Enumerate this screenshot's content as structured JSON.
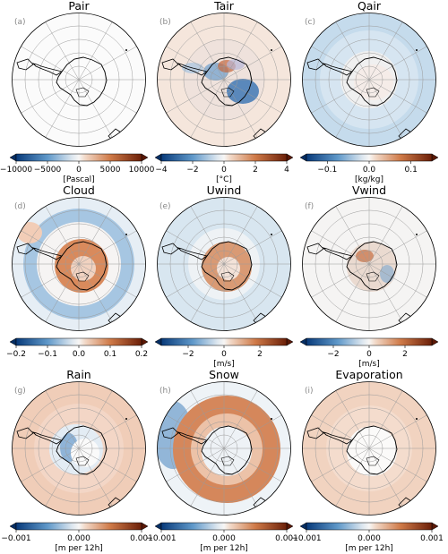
{
  "colors": {
    "neg": "#1f5d9e",
    "neg_light": "#c6dcec",
    "mid": "#f7f6f5",
    "pos_light": "#f3c9b1",
    "pos": "#9b3a12",
    "land_outline": "#000000",
    "grid": "#9a9a9a"
  },
  "chart_data": [
    {
      "type": "heatmap",
      "title": "Pair",
      "panel_letter": "(a)",
      "unit": "[Pascal]",
      "ticks": [
        "−10000",
        "−5000",
        "0",
        "5000",
        "10000"
      ],
      "tick_values": [
        -10000,
        -5000,
        0,
        5000,
        10000
      ],
      "range": [
        -10000,
        10000
      ],
      "pattern": "near_zero"
    },
    {
      "type": "heatmap",
      "title": "Tair",
      "panel_letter": "(b)",
      "unit": "[°C]",
      "ticks": [
        "−4",
        "−2",
        "0",
        "2",
        "4"
      ],
      "tick_values": [
        -4,
        -2,
        0,
        2,
        4
      ],
      "range": [
        -4,
        4
      ],
      "pattern": "tair"
    },
    {
      "type": "heatmap",
      "title": "Qair",
      "panel_letter": "(c)",
      "unit": "[kg/kg]",
      "ticks": [
        "−0.1",
        "0.0",
        "0.1"
      ],
      "tick_values": [
        -0.1,
        0.0,
        0.1
      ],
      "range": [
        -0.15,
        0.15
      ],
      "pattern": "qair"
    },
    {
      "type": "heatmap",
      "title": "Cloud",
      "panel_letter": "(d)",
      "unit": "",
      "ticks": [
        "−0.2",
        "−0.1",
        "0.0",
        "0.1",
        "0.2"
      ],
      "tick_values": [
        -0.2,
        -0.1,
        0.0,
        0.1,
        0.2
      ],
      "range": [
        -0.2,
        0.2
      ],
      "pattern": "cloud"
    },
    {
      "type": "heatmap",
      "title": "Uwind",
      "panel_letter": "(e)",
      "unit": "[m/s]",
      "ticks": [
        "−2",
        "0",
        "2"
      ],
      "tick_values": [
        -2,
        0,
        2
      ],
      "range": [
        -3.5,
        3.5
      ],
      "pattern": "uwind"
    },
    {
      "type": "heatmap",
      "title": "Vwind",
      "panel_letter": "(f)",
      "unit": "[m/s]",
      "ticks": [
        "−2",
        "0",
        "2"
      ],
      "tick_values": [
        -2,
        0,
        2
      ],
      "range": [
        -3.5,
        3.5
      ],
      "pattern": "vwind"
    },
    {
      "type": "heatmap",
      "title": "Rain",
      "panel_letter": "(g)",
      "unit": "[m per 12h]",
      "ticks": [
        "−0.001",
        "0.000",
        "0.001"
      ],
      "tick_values": [
        -0.001,
        0.0,
        0.001
      ],
      "range": [
        -0.001,
        0.001
      ],
      "pattern": "rain"
    },
    {
      "type": "heatmap",
      "title": "Snow",
      "panel_letter": "(h)",
      "unit": "[m per 12h]",
      "ticks": [
        "−0.001",
        "0.000",
        "0.001"
      ],
      "tick_values": [
        -0.001,
        0.0,
        0.001
      ],
      "range": [
        -0.001,
        0.001
      ],
      "pattern": "snow"
    },
    {
      "type": "heatmap",
      "title": "Evaporation",
      "panel_letter": "(i)",
      "unit": "[m per 12h]",
      "ticks": [
        "−0.001",
        "0.000",
        "0.001"
      ],
      "tick_values": [
        -0.001,
        0.0,
        0.001
      ],
      "range": [
        -0.001,
        0.001
      ],
      "pattern": "evap"
    }
  ]
}
